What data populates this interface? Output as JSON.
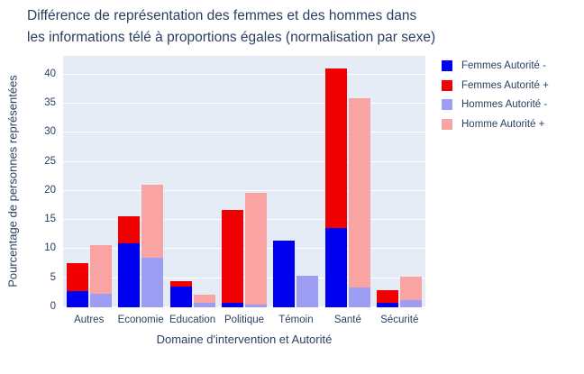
{
  "chart_data": {
    "type": "bar",
    "stacked": true,
    "title": "Différence de représentation des femmes et des hommes dans\nles informations télé à proportions égales (normalisation par sexe)",
    "xlabel": "Domaine d'intervention et Autorité",
    "ylabel": "Pourcentage de personnes représentées",
    "categories": [
      "Autres",
      "Economie",
      "Education",
      "Politique",
      "Témoin",
      "Santé",
      "Sécurité"
    ],
    "series": [
      {
        "name": "Femmes Autorité -",
        "bar": "femmes",
        "color_key": "femmes_minus",
        "values": [
          2.8,
          11.0,
          3.5,
          0.8,
          11.4,
          13.7,
          0.8
        ]
      },
      {
        "name": "Femmes Autorité +",
        "bar": "femmes",
        "color_key": "femmes_plus",
        "values": [
          4.8,
          4.6,
          1.0,
          16.0,
          0,
          27.3,
          2.2
        ]
      },
      {
        "name": "Hommes Autorité -",
        "bar": "hommes",
        "color_key": "hommes_minus",
        "values": [
          2.4,
          8.5,
          0.8,
          0.4,
          5.4,
          3.4,
          1.2
        ]
      },
      {
        "name": "Homme Autorité +",
        "bar": "hommes",
        "color_key": "hommes_plus",
        "values": [
          8.3,
          12.5,
          1.4,
          19.3,
          0,
          32.5,
          4.1
        ]
      }
    ],
    "yticks": [
      0,
      5,
      10,
      15,
      20,
      25,
      30,
      35,
      40
    ],
    "ylim": [
      0,
      43.2
    ],
    "legend_position": "right",
    "grid": true,
    "colors": {
      "femmes_minus": "#0000f0",
      "femmes_plus": "#f00000",
      "hommes_minus": "#9d9df4",
      "hommes_plus": "#faa3a3",
      "plot_background": "#e5ecf6",
      "paper_background": "#ffffff",
      "grid_line": "#ffffff",
      "text": "#2a3f5f"
    }
  }
}
